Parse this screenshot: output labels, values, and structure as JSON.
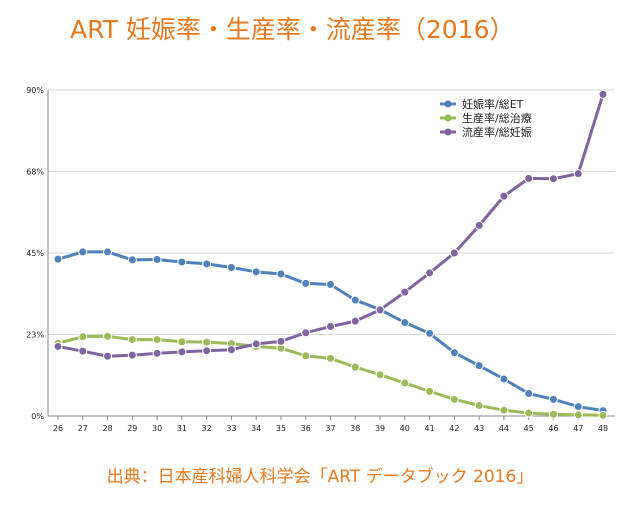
{
  "title": "ART 妊娠率・生産率・流産率（2016）",
  "source": "出典：日本産科婦人科学会「ART データブック 2016」",
  "chart_data": {
    "type": "line",
    "title": "ART 妊娠率・生産率・流産率（2016）",
    "xlabel": "",
    "ylabel": "",
    "x": [
      26,
      27,
      28,
      29,
      30,
      31,
      32,
      33,
      34,
      35,
      36,
      37,
      38,
      39,
      40,
      41,
      42,
      43,
      44,
      45,
      46,
      47,
      48
    ],
    "y_ticks": [
      "0%",
      "23%",
      "45%",
      "68%",
      "90%"
    ],
    "ylim": [
      0,
      90
    ],
    "grid": "horizontal",
    "legend_position": "top-right",
    "series": [
      {
        "name": "妊娠率/総ET",
        "color": "#4f81bd",
        "values": [
          43.3,
          45.3,
          45.3,
          43.1,
          43.2,
          42.5,
          42.0,
          41.0,
          39.8,
          39.2,
          36.6,
          36.3,
          32.0,
          29.4,
          25.8,
          22.8,
          17.5,
          13.9,
          10.2,
          6.2,
          4.6,
          2.6,
          1.5
        ]
      },
      {
        "name": "生産率/総治療",
        "color": "#9bbb59",
        "values": [
          20.1,
          21.9,
          22.0,
          21.1,
          21.1,
          20.5,
          20.4,
          20.0,
          19.2,
          18.7,
          16.6,
          15.9,
          13.5,
          11.4,
          9.1,
          6.8,
          4.6,
          2.9,
          1.6,
          0.8,
          0.5,
          0.3,
          0.2
        ]
      },
      {
        "name": "流産率/総妊娠",
        "color": "#8064a2",
        "values": [
          19.2,
          17.9,
          16.5,
          16.8,
          17.3,
          17.7,
          18.0,
          18.3,
          19.9,
          20.6,
          23.0,
          24.7,
          26.2,
          29.3,
          34.2,
          39.5,
          45.0,
          52.6,
          60.7,
          65.6,
          65.5,
          66.9,
          88.8
        ]
      }
    ]
  }
}
